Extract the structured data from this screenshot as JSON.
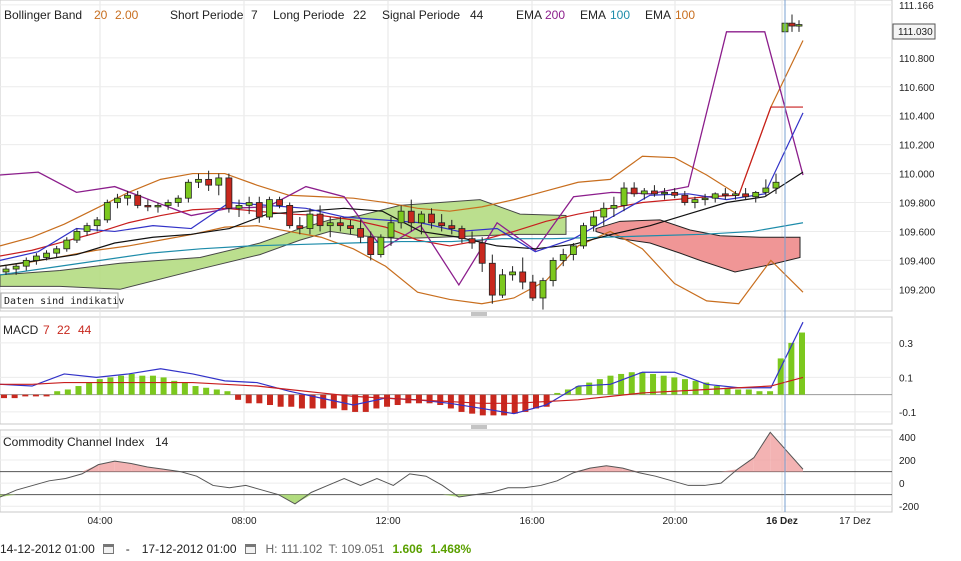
{
  "legend": {
    "bollinger": {
      "label": "Bollinger Band",
      "period": "20",
      "dev": "2.00"
    },
    "short": {
      "label": "Short Periode",
      "value": "7"
    },
    "long": {
      "label": "Long Periode",
      "value": "22"
    },
    "signal": {
      "label": "Signal Periode",
      "value": "44"
    },
    "ema1": {
      "label": "EMA",
      "value": "200"
    },
    "ema2": {
      "label": "EMA",
      "value": "100"
    },
    "ema3": {
      "label": "EMA",
      "value": "100"
    }
  },
  "indicative_note": "Daten sind indikativ",
  "last_price": "111.030",
  "macd_label": {
    "name": "MACD",
    "a": "7",
    "b": "22",
    "c": "44"
  },
  "cci_label": {
    "name": "Commodity Channel Index",
    "period": "14"
  },
  "footer": {
    "from": "14-12-2012 01:00",
    "sep": "-",
    "to": "17-12-2012 01:00",
    "high": "H: 111.102",
    "low": "T: 109.051",
    "change": "1.606",
    "change_pct": "1.468%"
  },
  "colors": {
    "up": "#7cc81e",
    "down": "#c8281e",
    "bollinger": "#c86e1e",
    "ema200": "#8c1e8c",
    "ema100a": "#1e8caa",
    "cloud_pos": "#b4dc82",
    "cloud_neg": "#f09696",
    "macd_line": "#3232c8",
    "signal_line": "#c81e1e"
  },
  "chart_data": [
    {
      "type": "candlestick",
      "title": "",
      "x_tick_labels": [
        "04:00",
        "08:00",
        "12:00",
        "16:00",
        "20:00",
        "16 Dez",
        "17 Dez"
      ],
      "y_tick_labels": [
        "109.200",
        "109.400",
        "109.600",
        "109.800",
        "110.000",
        "110.200",
        "110.400",
        "110.600",
        "110.800",
        "111.166"
      ],
      "ylim": [
        109.05,
        111.2
      ],
      "grid": true,
      "ohlc": [
        [
          109.32,
          109.36,
          109.3,
          109.34
        ],
        [
          109.34,
          109.38,
          109.3,
          109.36
        ],
        [
          109.36,
          109.42,
          109.33,
          109.4
        ],
        [
          109.4,
          109.45,
          109.37,
          109.43
        ],
        [
          109.42,
          109.47,
          109.4,
          109.45
        ],
        [
          109.45,
          109.5,
          109.42,
          109.48
        ],
        [
          109.48,
          109.56,
          109.46,
          109.54
        ],
        [
          109.54,
          109.62,
          109.52,
          109.6
        ],
        [
          109.6,
          109.66,
          109.57,
          109.64
        ],
        [
          109.64,
          109.7,
          109.6,
          109.68
        ],
        [
          109.68,
          109.82,
          109.66,
          109.8
        ],
        [
          109.8,
          109.86,
          109.76,
          109.83
        ],
        [
          109.83,
          109.88,
          109.78,
          109.85
        ],
        [
          109.85,
          109.88,
          109.76,
          109.78
        ],
        [
          109.78,
          109.82,
          109.74,
          109.77
        ],
        [
          109.77,
          109.8,
          109.73,
          109.78
        ],
        [
          109.78,
          109.82,
          109.75,
          109.8
        ],
        [
          109.8,
          109.85,
          109.77,
          109.83
        ],
        [
          109.83,
          109.96,
          109.8,
          109.94
        ],
        [
          109.94,
          110.0,
          109.9,
          109.96
        ],
        [
          109.96,
          110.02,
          109.88,
          109.92
        ],
        [
          109.92,
          110.0,
          109.85,
          109.97
        ],
        [
          109.97,
          110.0,
          109.73,
          109.76
        ],
        [
          109.76,
          109.82,
          109.7,
          109.78
        ],
        [
          109.78,
          109.84,
          109.72,
          109.8
        ],
        [
          109.8,
          109.84,
          109.66,
          109.7
        ],
        [
          109.7,
          109.84,
          109.68,
          109.82
        ],
        [
          109.82,
          109.84,
          109.76,
          109.78
        ],
        [
          109.78,
          109.8,
          109.62,
          109.64
        ],
        [
          109.64,
          109.7,
          109.58,
          109.62
        ],
        [
          109.62,
          109.76,
          109.58,
          109.72
        ],
        [
          109.72,
          109.78,
          109.6,
          109.64
        ],
        [
          109.64,
          109.7,
          109.56,
          109.66
        ],
        [
          109.66,
          109.7,
          109.6,
          109.64
        ],
        [
          109.64,
          109.68,
          109.58,
          109.62
        ],
        [
          109.62,
          109.68,
          109.52,
          109.56
        ],
        [
          109.56,
          109.6,
          109.4,
          109.44
        ],
        [
          109.44,
          109.58,
          109.42,
          109.56
        ],
        [
          109.56,
          109.7,
          109.5,
          109.66
        ],
        [
          109.66,
          109.78,
          109.62,
          109.74
        ],
        [
          109.74,
          109.82,
          109.6,
          109.66
        ],
        [
          109.66,
          109.74,
          109.58,
          109.72
        ],
        [
          109.72,
          109.76,
          109.62,
          109.66
        ],
        [
          109.66,
          109.72,
          109.6,
          109.64
        ],
        [
          109.64,
          109.68,
          109.58,
          109.62
        ],
        [
          109.62,
          109.64,
          109.52,
          109.55
        ],
        [
          109.55,
          109.6,
          109.48,
          109.52
        ],
        [
          109.52,
          109.56,
          109.32,
          109.38
        ],
        [
          109.38,
          109.44,
          109.1,
          109.16
        ],
        [
          109.16,
          109.34,
          109.14,
          109.3
        ],
        [
          109.3,
          109.36,
          109.26,
          109.32
        ],
        [
          109.32,
          109.42,
          109.2,
          109.25
        ],
        [
          109.25,
          109.3,
          109.12,
          109.14
        ],
        [
          109.14,
          109.28,
          109.06,
          109.26
        ],
        [
          109.26,
          109.42,
          109.22,
          109.4
        ],
        [
          109.4,
          109.48,
          109.36,
          109.44
        ],
        [
          109.44,
          109.52,
          109.4,
          109.5
        ],
        [
          109.5,
          109.66,
          109.48,
          109.64
        ],
        [
          109.64,
          109.74,
          109.6,
          109.7
        ],
        [
          109.7,
          109.8,
          109.64,
          109.76
        ],
        [
          109.76,
          109.84,
          109.7,
          109.78
        ],
        [
          109.78,
          109.94,
          109.74,
          109.9
        ],
        [
          109.9,
          109.94,
          109.84,
          109.86
        ],
        [
          109.86,
          109.9,
          109.82,
          109.88
        ],
        [
          109.88,
          109.92,
          109.84,
          109.86
        ],
        [
          109.86,
          109.9,
          109.82,
          109.87
        ],
        [
          109.87,
          109.9,
          109.83,
          109.85
        ],
        [
          109.85,
          109.88,
          109.78,
          109.8
        ],
        [
          109.8,
          109.84,
          109.76,
          109.82
        ],
        [
          109.82,
          109.86,
          109.78,
          109.83
        ],
        [
          109.83,
          109.87,
          109.8,
          109.86
        ],
        [
          109.86,
          109.9,
          109.82,
          109.85
        ],
        [
          109.85,
          109.88,
          109.82,
          109.86
        ],
        [
          109.86,
          109.9,
          109.82,
          109.84
        ],
        [
          109.84,
          109.88,
          109.8,
          109.87
        ],
        [
          109.87,
          109.96,
          109.84,
          109.9
        ],
        [
          109.9,
          110.0,
          109.86,
          109.94
        ],
        [
          110.98,
          111.1,
          110.95,
          111.04
        ],
        [
          111.04,
          111.1,
          110.98,
          111.02
        ],
        [
          111.02,
          111.06,
          110.98,
          111.03
        ]
      ],
      "bollinger_upper": [
        109.5,
        109.56,
        109.65,
        109.76,
        109.87,
        109.96,
        110.0,
        110.0,
        109.92,
        109.85,
        109.84,
        109.83,
        109.8,
        109.76,
        109.74,
        109.77,
        109.82,
        109.88,
        109.94,
        109.96,
        110.12,
        110.11,
        109.99,
        109.85,
        110.46,
        110.92
      ],
      "bollinger_middle": [
        109.43,
        109.47,
        109.53,
        109.59,
        109.66,
        109.71,
        109.75,
        109.76,
        109.74,
        109.72,
        109.71,
        109.68,
        109.63,
        109.54,
        109.5,
        109.54,
        109.6,
        109.67,
        109.72,
        109.76,
        109.8,
        109.82,
        109.84,
        109.85,
        110.46,
        110.46
      ],
      "bollinger_lower": [
        109.36,
        109.39,
        109.43,
        109.47,
        109.5,
        109.54,
        109.58,
        109.63,
        109.64,
        109.6,
        109.56,
        109.48,
        109.36,
        109.18,
        109.13,
        109.1,
        109.14,
        109.26,
        109.5,
        109.6,
        109.48,
        109.24,
        109.12,
        109.1,
        109.4,
        109.18
      ],
      "ema200": [
        109.99,
        110.01,
        109.87,
        109.91,
        109.81,
        109.71,
        109.76,
        109.77,
        109.91,
        109.84,
        109.48,
        109.64,
        109.23,
        109.66,
        109.47,
        109.84,
        109.87,
        109.86,
        109.91,
        110.98,
        110.98,
        109.99
      ],
      "ema100": [
        109.3,
        109.35,
        109.4,
        109.45,
        109.48,
        109.5,
        109.51,
        109.52,
        109.53,
        109.53,
        109.55,
        109.55,
        109.56,
        109.57,
        109.58,
        109.6,
        109.66
      ],
      "macd": [
        0.06,
        0.05,
        0.12,
        0.1,
        0.12,
        0.15,
        0.12,
        0.08,
        0.07,
        0.02,
        -0.02,
        -0.06,
        -0.02,
        -0.03,
        -0.05,
        -0.08,
        -0.11,
        -0.06,
        0.05,
        0.06,
        0.13,
        0.13,
        0.06,
        0.04,
        0.04,
        0.42
      ],
      "signal": [
        0.06,
        0.06,
        0.07,
        0.07,
        0.07,
        0.07,
        0.07,
        0.06,
        0.05,
        0.03,
        0.01,
        -0.01,
        -0.02,
        -0.03,
        -0.04,
        -0.05,
        -0.05,
        -0.04,
        -0.03,
        -0.01,
        0.01,
        0.02,
        0.03,
        0.04,
        0.05,
        0.1
      ],
      "histogram": [
        -0.02,
        -0.02,
        -0.01,
        -0.01,
        -0.01,
        0.02,
        0.03,
        0.05,
        0.07,
        0.09,
        0.1,
        0.11,
        0.12,
        0.11,
        0.11,
        0.1,
        0.08,
        0.07,
        0.05,
        0.04,
        0.03,
        0.02,
        -0.03,
        -0.05,
        -0.05,
        -0.06,
        -0.07,
        -0.07,
        -0.08,
        -0.08,
        -0.08,
        -0.08,
        -0.09,
        -0.1,
        -0.1,
        -0.08,
        -0.07,
        -0.06,
        -0.05,
        -0.05,
        -0.05,
        -0.06,
        -0.08,
        -0.1,
        -0.11,
        -0.12,
        -0.12,
        -0.12,
        -0.11,
        -0.1,
        -0.08,
        -0.07,
        0.01,
        0.03,
        0.05,
        0.07,
        0.09,
        0.11,
        0.12,
        0.13,
        0.13,
        0.12,
        0.11,
        0.1,
        0.09,
        0.08,
        0.07,
        0.05,
        0.04,
        0.03,
        0.03,
        0.02,
        0.02,
        0.21,
        0.3,
        0.36
      ]
    },
    {
      "type": "bar",
      "title": "",
      "y_tick_labels": [
        "0.3",
        "0.1",
        "-0.1"
      ],
      "ylim": [
        -0.17,
        0.45
      ]
    },
    {
      "type": "line",
      "title": "",
      "y_tick_labels": [
        "400",
        "200",
        "0",
        "-200"
      ],
      "ylim": [
        -250,
        460
      ],
      "thresholds": [
        100,
        -100
      ],
      "cci": [
        -120,
        -60,
        -20,
        20,
        40,
        80,
        160,
        190,
        170,
        140,
        120,
        100,
        60,
        -20,
        -40,
        -20,
        -60,
        -100,
        -180,
        -80,
        -20,
        40,
        -20,
        40,
        -20,
        80,
        60,
        -20,
        -120,
        -100,
        -80,
        -40,
        -40,
        -20,
        20,
        90,
        130,
        150,
        130,
        90,
        60,
        20,
        -20,
        -20,
        0,
        120,
        220,
        440,
        280,
        120
      ]
    }
  ]
}
